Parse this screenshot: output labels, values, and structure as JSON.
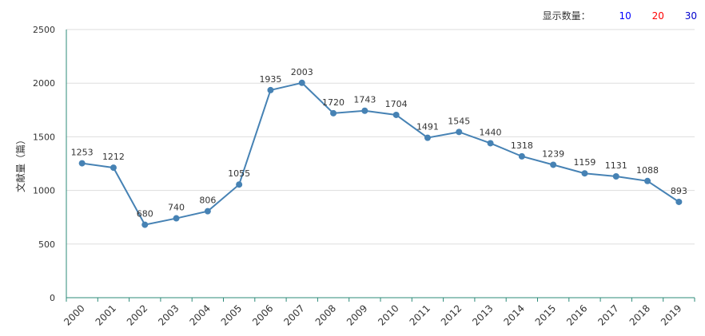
{
  "display_count": {
    "label": "显示数量：",
    "options": [
      {
        "label": "10",
        "color": "#0000ff"
      },
      {
        "label": "20",
        "color": "#ff0000"
      },
      {
        "label": "30",
        "color": "#0000cc"
      }
    ]
  },
  "chart_data": {
    "type": "line",
    "title": "",
    "xlabel": "",
    "ylabel": "文献量（篇）",
    "ylim": [
      0,
      2500
    ],
    "yticks": [
      0,
      500,
      1000,
      1500,
      2000,
      2500
    ],
    "grid": true,
    "categories": [
      "2000",
      "2001",
      "2002",
      "2003",
      "2004",
      "2005",
      "2006",
      "2007",
      "2008",
      "2009",
      "2010",
      "2011",
      "2012",
      "2013",
      "2014",
      "2015",
      "2016",
      "2017",
      "2018",
      "2019"
    ],
    "series": [
      {
        "values": [
          1253,
          1212,
          680,
          740,
          806,
          1055,
          1935,
          2003,
          1720,
          1743,
          1704,
          1491,
          1545,
          1440,
          1318,
          1239,
          1159,
          1131,
          1088,
          893
        ],
        "color": "#4682b4"
      }
    ],
    "axis_color": "#2e8b7a",
    "grid_color": "#dddddd"
  }
}
